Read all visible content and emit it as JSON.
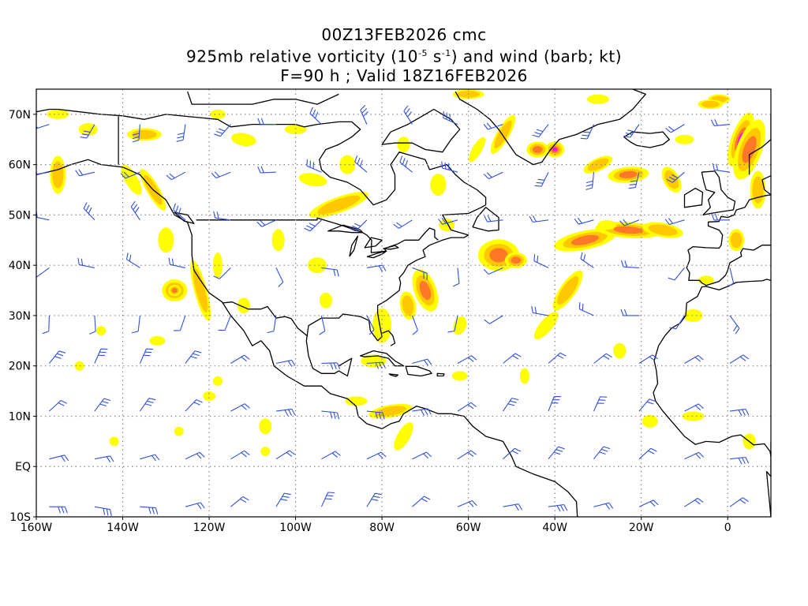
{
  "title": {
    "line1": "00Z13FEB2026 cmc",
    "line2_a": "925mb relative vorticity (10",
    "line2_exp1": "-5",
    "line2_b": " s",
    "line2_exp2": "-1",
    "line2_c": ") and wind (barb; kt)",
    "line3": "F=90 h ; Valid 18Z16FEB2026"
  },
  "map": {
    "projection": "cylindrical equidistant",
    "lon_range": [
      -160,
      10
    ],
    "lat_range": [
      -10,
      75
    ],
    "grid": "dotted",
    "lat_labels": [
      "70N",
      "60N",
      "50N",
      "40N",
      "30N",
      "20N",
      "10N",
      "EQ",
      "10S"
    ],
    "lat_values": [
      70,
      60,
      50,
      40,
      30,
      20,
      10,
      0,
      -10
    ],
    "lon_labels": [
      "160W",
      "140W",
      "120W",
      "100W",
      "80W",
      "60W",
      "40W",
      "20W",
      "0"
    ],
    "lon_values": [
      -160,
      -140,
      -120,
      -100,
      -80,
      -60,
      -40,
      -20,
      0
    ],
    "colors": {
      "vort_low": "#ffff00",
      "vort_mid": "#ffc800",
      "vort_high": "#ff7828",
      "vort_max": "#ff00ff",
      "barb": "#3050e0",
      "coast": "#000000",
      "grid": "#888888"
    }
  }
}
